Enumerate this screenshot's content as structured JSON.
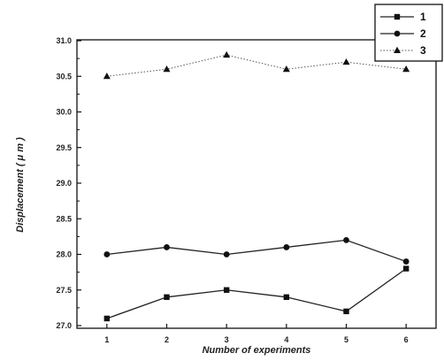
{
  "chart_data": {
    "type": "line",
    "title": "",
    "xlabel": "Number of experiments",
    "ylabel": "Displacement ( μ m )",
    "x": [
      1,
      2,
      3,
      4,
      5,
      6
    ],
    "x_tick_labels": [
      "1",
      "2",
      "3",
      "4",
      "5",
      "6"
    ],
    "xlim": [
      0.5,
      6.5
    ],
    "ylim": [
      27.0,
      31.0
    ],
    "y_ticks": [
      27.0,
      27.5,
      28.0,
      28.5,
      29.0,
      29.5,
      30.0,
      30.5,
      31.0
    ],
    "y_tick_labels": [
      "27.0",
      "27.5",
      "28.0",
      "28.5",
      "29.0",
      "29.5",
      "30.0",
      "30.5",
      "31.0"
    ],
    "grid": false,
    "legend_position": "top-right",
    "series": [
      {
        "name": "1",
        "marker": "square",
        "line": "solid",
        "values": [
          27.1,
          27.4,
          27.5,
          27.4,
          27.2,
          27.8
        ]
      },
      {
        "name": "2",
        "marker": "circle",
        "line": "solid",
        "values": [
          28.0,
          28.1,
          28.0,
          28.1,
          28.2,
          27.9
        ]
      },
      {
        "name": "3",
        "marker": "triangle",
        "line": "dotted",
        "values": [
          30.5,
          30.6,
          30.8,
          30.6,
          30.7,
          30.6
        ]
      }
    ]
  }
}
